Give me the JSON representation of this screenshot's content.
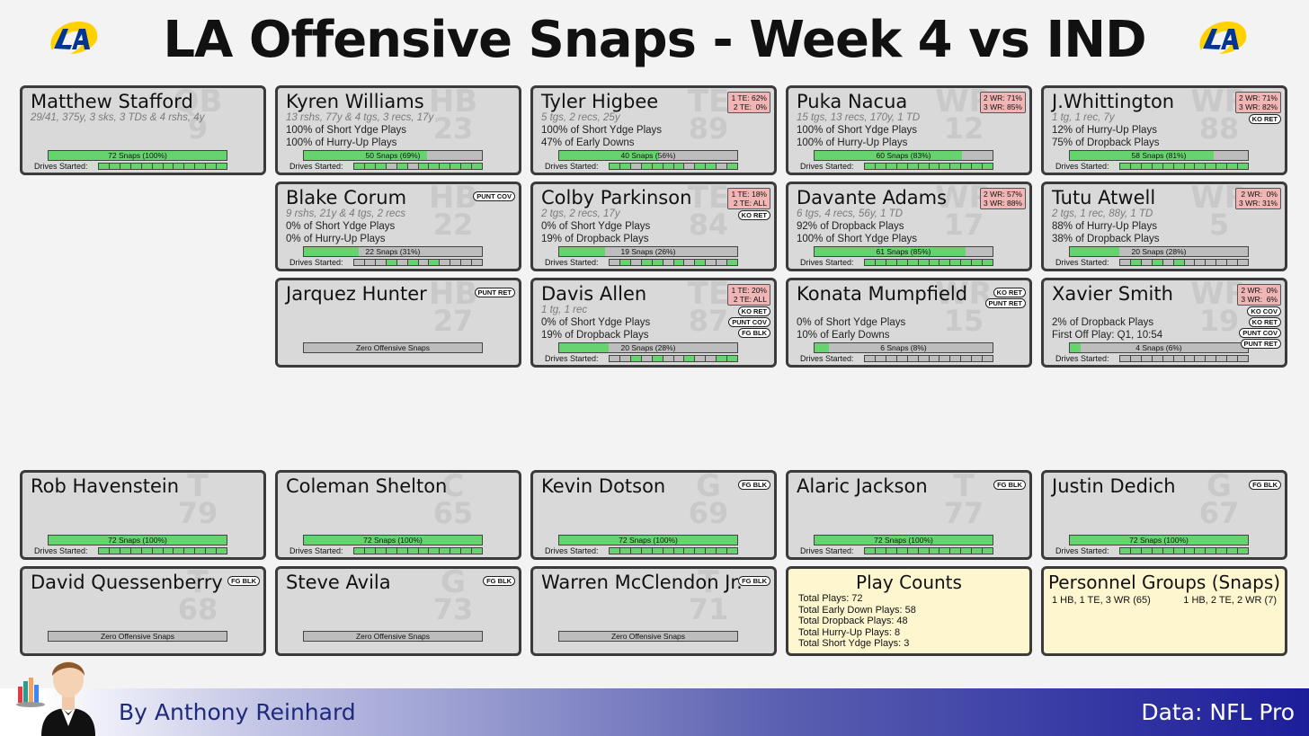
{
  "title": "LA Offensive Snaps - Week 4 vs IND",
  "footer": {
    "byline": "By Anthony Reinhard",
    "source": "Data: NFL Pro"
  },
  "labels": {
    "drives_started": "Drives Started:"
  },
  "colors": {
    "snap_fill": "#66d36e",
    "card_bg": "#d9d9d9",
    "te_wr_pct_bg": "#f0b6b6",
    "info_bg": "#fdf6cf"
  },
  "players": [
    {
      "name": "Matthew Stafford",
      "pos": "QB",
      "num": "9",
      "stat": "29/41, 375y, 3 sks, 3 TDs & 4 rshs, 4y",
      "line1": "",
      "line2": "",
      "snap_text": "72 Snaps (100%)",
      "snap_pct": 1.0,
      "drives": [
        1,
        1,
        1,
        1,
        1,
        1,
        1,
        1,
        1,
        1,
        1,
        1
      ],
      "pct": [],
      "badges": []
    },
    {
      "name": "Kyren Williams",
      "pos": "HB",
      "num": "23",
      "stat": "13 rshs, 77y & 4 tgs, 3 recs, 17y",
      "line1": "100% of Short Ydge Plays",
      "line2": "100% of Hurry-Up Plays",
      "snap_text": "50 Snaps (69%)",
      "snap_pct": 0.69,
      "drives": [
        1,
        1,
        1,
        0,
        1,
        0,
        1,
        1,
        1,
        1,
        1,
        1
      ],
      "pct": [],
      "badges": []
    },
    {
      "name": "Tyler Higbee",
      "pos": "TE",
      "num": "89",
      "stat": "5 tgs, 2 recs, 25y",
      "line1": "100% of Short Ydge Plays",
      "line2": "47% of Early Downs",
      "snap_text": "40 Snaps (56%)",
      "snap_pct": 0.56,
      "drives": [
        1,
        1,
        0,
        1,
        1,
        1,
        1,
        0,
        1,
        1,
        0,
        1
      ],
      "pct": [
        "1 TE: 62%",
        "2 TE:  0%"
      ],
      "badges": []
    },
    {
      "name": "Puka Nacua",
      "pos": "WR",
      "num": "12",
      "stat": "15 tgs, 13 recs, 170y, 1 TD",
      "line1": "100% of Short Ydge Plays",
      "line2": "100% of Hurry-Up Plays",
      "snap_text": "60 Snaps (83%)",
      "snap_pct": 0.83,
      "drives": [
        1,
        1,
        1,
        1,
        1,
        1,
        1,
        1,
        1,
        1,
        1,
        1
      ],
      "pct": [
        "2 WR: 71%",
        "3 WR: 85%"
      ],
      "badges": []
    },
    {
      "name": "J.Whittington",
      "pos": "WR",
      "num": "88",
      "stat": "1 tg, 1 rec, 7y",
      "line1": "12% of Hurry-Up Plays",
      "line2": "75% of Dropback Plays",
      "snap_text": "58 Snaps (81%)",
      "snap_pct": 0.81,
      "drives": [
        1,
        1,
        1,
        1,
        1,
        1,
        1,
        1,
        1,
        1,
        1,
        1
      ],
      "pct": [
        "2 WR: 71%",
        "3 WR: 82%"
      ],
      "badges": [
        "KO RET"
      ]
    },
    {
      "name": "Blake Corum",
      "pos": "HB",
      "num": "22",
      "stat": "9 rshs, 21y & 4 tgs, 2 recs",
      "line1": "0% of Short Ydge Plays",
      "line2": "0% of Hurry-Up Plays",
      "snap_text": "22 Snaps (31%)",
      "snap_pct": 0.31,
      "drives": [
        0,
        0,
        0,
        1,
        0,
        1,
        0,
        1,
        0,
        0,
        0,
        0
      ],
      "pct": [],
      "badges": [
        "PUNT COV"
      ]
    },
    {
      "name": "Colby Parkinson",
      "pos": "TE",
      "num": "84",
      "stat": "2 tgs, 2 recs, 17y",
      "line1": "0% of Short Ydge Plays",
      "line2": "19% of Dropback Plays",
      "snap_text": "19 Snaps (26%)",
      "snap_pct": 0.26,
      "drives": [
        0,
        1,
        0,
        1,
        1,
        0,
        1,
        0,
        1,
        0,
        0,
        1
      ],
      "pct": [
        "1 TE: 18%",
        "2 TE: ALL"
      ],
      "badges": [
        "KO RET"
      ]
    },
    {
      "name": "Davante Adams",
      "pos": "WR",
      "num": "17",
      "stat": "6 tgs, 4 recs, 56y, 1 TD",
      "line1": "92% of Dropback Plays",
      "line2": "100% of Short Ydge Plays",
      "snap_text": "61 Snaps (85%)",
      "snap_pct": 0.85,
      "drives": [
        1,
        1,
        1,
        1,
        1,
        1,
        1,
        1,
        1,
        1,
        1,
        1
      ],
      "pct": [
        "2 WR: 57%",
        "3 WR: 88%"
      ],
      "badges": []
    },
    {
      "name": "Tutu Atwell",
      "pos": "WR",
      "num": "5",
      "stat": "2 tgs, 1 rec, 88y, 1 TD",
      "line1": "88% of Hurry-Up Plays",
      "line2": "38% of Dropback Plays",
      "snap_text": "20 Snaps (28%)",
      "snap_pct": 0.28,
      "drives": [
        0,
        1,
        0,
        1,
        0,
        1,
        0,
        0,
        0,
        0,
        0,
        0
      ],
      "pct": [
        "2 WR:  0%",
        "3 WR: 31%"
      ],
      "badges": []
    },
    {
      "name": "Jarquez Hunter",
      "pos": "HB",
      "num": "27",
      "stat": "",
      "line1": "",
      "line2": "",
      "snap_text": "Zero Offensive Snaps",
      "snap_pct": 0,
      "drives": [],
      "pct": [],
      "badges": [
        "PUNT RET"
      ]
    },
    {
      "name": "Davis Allen",
      "pos": "TE",
      "num": "87",
      "stat": "1 tg, 1 rec",
      "line1": "0% of Short Ydge Plays",
      "line2": "19% of Dropback Plays",
      "snap_text": "20 Snaps (28%)",
      "snap_pct": 0.28,
      "drives": [
        0,
        0,
        1,
        0,
        1,
        0,
        0,
        1,
        0,
        0,
        1,
        1
      ],
      "pct": [
        "1 TE: 20%",
        "2 TE: ALL"
      ],
      "badges": [
        "KO RET",
        "PUNT COV",
        "FG BLK"
      ]
    },
    {
      "name": "Konata Mumpfield",
      "pos": "WR",
      "num": "15",
      "stat": "",
      "line1": "0% of Short Ydge Plays",
      "line2": "10% of Early Downs",
      "snap_text": "6 Snaps (8%)",
      "snap_pct": 0.08,
      "drives": [
        0,
        0,
        0,
        0,
        0,
        0,
        0,
        0,
        0,
        0,
        0,
        0
      ],
      "pct": [],
      "badges": [
        "KO RET",
        "PUNT RET"
      ]
    },
    {
      "name": "Xavier Smith",
      "pos": "WR",
      "num": "19",
      "stat": "",
      "line1": "2% of Dropback Plays",
      "line2": "First Off Play: Q1, 10:54",
      "snap_text": "4 Snaps (6%)",
      "snap_pct": 0.06,
      "drives": [
        0,
        0,
        0,
        0,
        0,
        0,
        0,
        0,
        0,
        0,
        0,
        0
      ],
      "pct": [
        "2 WR:  0%",
        "3 WR:  6%"
      ],
      "badges": [
        "KO COV",
        "KO RET",
        "PUNT COV",
        "PUNT RET"
      ]
    },
    {
      "name": "Rob Havenstein",
      "pos": "T",
      "num": "79",
      "stat": "",
      "line1": "",
      "line2": "",
      "snap_text": "72 Snaps (100%)",
      "snap_pct": 1.0,
      "drives": [
        1,
        1,
        1,
        1,
        1,
        1,
        1,
        1,
        1,
        1,
        1,
        1
      ],
      "pct": [],
      "badges": []
    },
    {
      "name": "Coleman Shelton",
      "pos": "C",
      "num": "65",
      "stat": "",
      "line1": "",
      "line2": "",
      "snap_text": "72 Snaps (100%)",
      "snap_pct": 1.0,
      "drives": [
        1,
        1,
        1,
        1,
        1,
        1,
        1,
        1,
        1,
        1,
        1,
        1
      ],
      "pct": [],
      "badges": []
    },
    {
      "name": "Kevin Dotson",
      "pos": "G",
      "num": "69",
      "stat": "",
      "line1": "",
      "line2": "",
      "snap_text": "72 Snaps (100%)",
      "snap_pct": 1.0,
      "drives": [
        1,
        1,
        1,
        1,
        1,
        1,
        1,
        1,
        1,
        1,
        1,
        1
      ],
      "pct": [],
      "badges": [
        "FG BLK"
      ]
    },
    {
      "name": "Alaric Jackson",
      "pos": "T",
      "num": "77",
      "stat": "",
      "line1": "",
      "line2": "",
      "snap_text": "72 Snaps (100%)",
      "snap_pct": 1.0,
      "drives": [
        1,
        1,
        1,
        1,
        1,
        1,
        1,
        1,
        1,
        1,
        1,
        1
      ],
      "pct": [],
      "badges": [
        "FG BLK"
      ]
    },
    {
      "name": "Justin Dedich",
      "pos": "G",
      "num": "67",
      "stat": "",
      "line1": "",
      "line2": "",
      "snap_text": "72 Snaps (100%)",
      "snap_pct": 1.0,
      "drives": [
        1,
        1,
        1,
        1,
        1,
        1,
        1,
        1,
        1,
        1,
        1,
        1
      ],
      "pct": [],
      "badges": [
        "FG BLK"
      ]
    },
    {
      "name": "David Quessenberry",
      "pos": "T",
      "num": "68",
      "stat": "",
      "line1": "",
      "line2": "",
      "snap_text": "Zero Offensive Snaps",
      "snap_pct": 0,
      "drives": [],
      "pct": [],
      "badges": [
        "FG BLK"
      ]
    },
    {
      "name": "Steve Avila",
      "pos": "G",
      "num": "73",
      "stat": "",
      "line1": "",
      "line2": "",
      "snap_text": "Zero Offensive Snaps",
      "snap_pct": 0,
      "drives": [],
      "pct": [],
      "badges": [
        "FG BLK"
      ]
    },
    {
      "name": "Warren McClendon Jr.",
      "pos": "T",
      "num": "71",
      "stat": "",
      "line1": "",
      "line2": "",
      "snap_text": "Zero Offensive Snaps",
      "snap_pct": 0,
      "drives": [],
      "pct": [],
      "badges": [
        "FG BLK"
      ]
    }
  ],
  "play_counts": {
    "title": "Play Counts",
    "lines": [
      "Total Plays: 72",
      "Total Early Down Plays: 58",
      "Total Dropback Plays: 48",
      "Total Hurry-Up Plays: 8",
      "Total Short Ydge Plays: 3"
    ]
  },
  "personnel": {
    "title": "Personnel Groups (Snaps)",
    "groups": [
      "1 HB, 1 TE, 3 WR (65)",
      "1 HB, 2 TE, 2 WR (7)"
    ]
  }
}
